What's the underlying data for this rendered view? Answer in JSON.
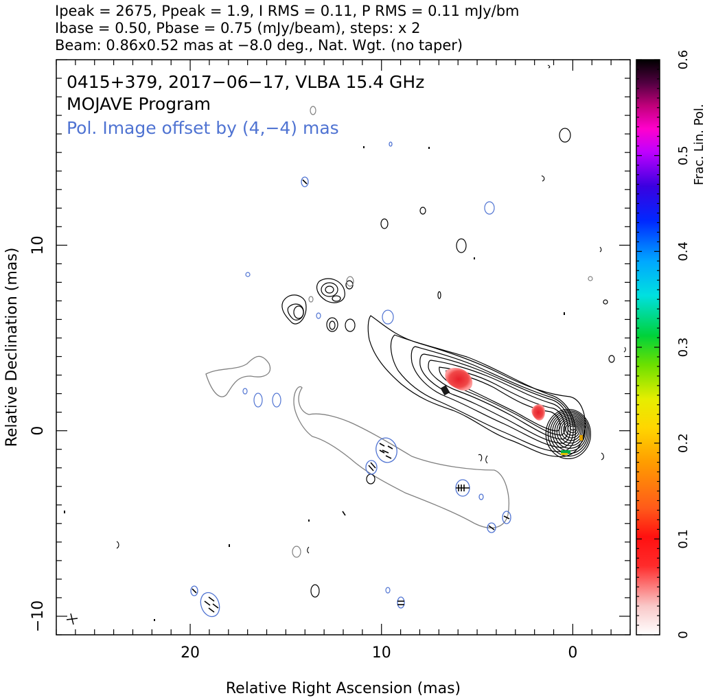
{
  "header": {
    "line1": "Ipeak = 2675, Ppeak = 1.9, I RMS = 0.11, P RMS = 0.11 mJy/bm",
    "line2": "Ibase = 0.50, Pbase = 0.75 (mJy/beam), steps: x 2",
    "line3": "Beam: 0.86x0.52 mas at −8.0 deg., Nat. Wgt. (no taper)"
  },
  "annotations": {
    "source": "0415+379, 2017−06−17, VLBA 15.4 GHz",
    "program": "MOJAVE Program",
    "offset_note": "Pol. Image offset by (4,−4) mas"
  },
  "colors": {
    "total_intensity": "#000000",
    "polarization_contour": "#4f73d2",
    "pol_outline": "#808080",
    "frac_pol_low": "#e8232a"
  },
  "chart_data": {
    "type": "contour",
    "xlabel": "Relative Right Ascension (mas)",
    "ylabel": "Relative Declination (mas)",
    "colorbar_label": "Frac. Lin. Pol.",
    "xlim": [
      27,
      -3
    ],
    "ylim": [
      -11,
      20
    ],
    "x_ticks": [
      20,
      10,
      0
    ],
    "y_ticks": [
      10,
      0,
      -10
    ],
    "colorbar_range": [
      0,
      0.6
    ],
    "colorbar_ticks": [
      0,
      0.1,
      0.2,
      0.3,
      0.4,
      0.5,
      0.6
    ],
    "core": {
      "x": 0,
      "y": 0,
      "contour_levels": 12
    },
    "jet_components": [
      {
        "x": 0.0,
        "y": 0.2,
        "levels": 12
      },
      {
        "x": 2.0,
        "y": 1.0,
        "levels": 6
      },
      {
        "x": 5.8,
        "y": 3.0,
        "levels": 5
      },
      {
        "x": 9.5,
        "y": 4.5,
        "levels": 2
      },
      {
        "x": 12.3,
        "y": 7.3,
        "levels": 3
      },
      {
        "x": 14.5,
        "y": 6.5,
        "levels": 2
      }
    ],
    "frac_pol_patches": [
      {
        "x": 5.8,
        "y": 3.0,
        "value": 0.06
      },
      {
        "x": 1.6,
        "y": 1.0,
        "value": 0.05
      }
    ],
    "pol_offset": [
      4,
      -4
    ],
    "beam": {
      "major": 0.86,
      "minor": 0.52,
      "pa": -8.0
    }
  }
}
